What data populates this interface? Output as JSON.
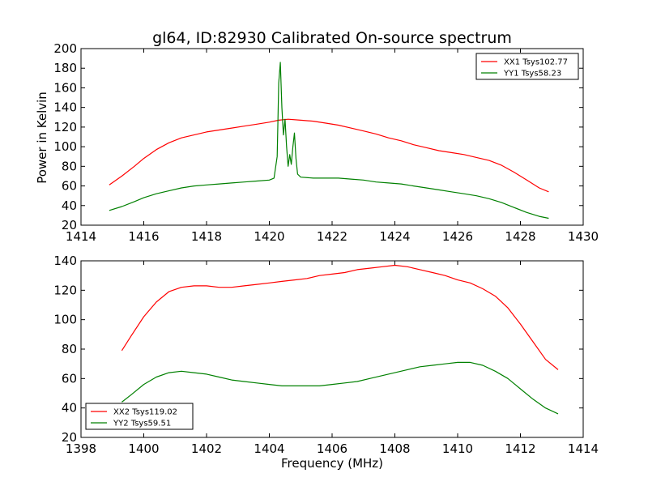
{
  "figure": {
    "title": "gl64, ID:82930 Calibrated On-source spectrum",
    "ylabel": "Power in Kelvin",
    "xlabel": "Frequency (MHz)",
    "colors": {
      "red": "#ff0000",
      "green": "#008000",
      "axis": "#000000"
    }
  },
  "chart_data": [
    {
      "type": "line",
      "title": "gl64, ID:82930 Calibrated On-source spectrum",
      "ylabel": "Power in Kelvin",
      "xlabel": "",
      "xlim": [
        1414,
        1430
      ],
      "ylim": [
        20,
        200
      ],
      "xticks": [
        1414,
        1416,
        1418,
        1420,
        1422,
        1424,
        1426,
        1428,
        1430
      ],
      "yticks": [
        20,
        40,
        60,
        80,
        100,
        120,
        140,
        160,
        180,
        200
      ],
      "grid": false,
      "legend_position": "top-right",
      "series": [
        {
          "name": "XX1 Tsys102.77",
          "color": "#ff0000",
          "x": [
            1414.9,
            1415.3,
            1415.7,
            1416.0,
            1416.4,
            1416.8,
            1417.2,
            1417.6,
            1418.0,
            1418.4,
            1418.8,
            1419.2,
            1419.6,
            1420.0,
            1420.3,
            1420.6,
            1421.0,
            1421.4,
            1421.8,
            1422.2,
            1422.6,
            1423.0,
            1423.4,
            1423.8,
            1424.2,
            1424.6,
            1425.0,
            1425.4,
            1425.8,
            1426.2,
            1426.6,
            1427.0,
            1427.4,
            1427.8,
            1428.2,
            1428.6,
            1428.9
          ],
          "y": [
            61,
            70,
            80,
            88,
            97,
            104,
            109,
            112,
            115,
            117,
            119,
            121,
            123,
            125,
            127,
            128,
            127,
            126,
            124,
            122,
            119,
            116,
            113,
            109,
            106,
            102,
            99,
            96,
            94,
            92,
            89,
            86,
            81,
            74,
            66,
            58,
            54
          ]
        },
        {
          "name": "YY1 Tsys58.23",
          "color": "#008000",
          "x": [
            1414.9,
            1415.3,
            1415.7,
            1416.0,
            1416.4,
            1416.8,
            1417.2,
            1417.6,
            1418.0,
            1418.4,
            1418.8,
            1419.2,
            1419.6,
            1420.0,
            1420.15,
            1420.25,
            1420.3,
            1420.35,
            1420.4,
            1420.45,
            1420.5,
            1420.55,
            1420.6,
            1420.65,
            1420.7,
            1420.75,
            1420.8,
            1420.85,
            1420.9,
            1421.0,
            1421.4,
            1421.8,
            1422.2,
            1422.6,
            1423.0,
            1423.4,
            1423.8,
            1424.2,
            1424.6,
            1425.0,
            1425.4,
            1425.8,
            1426.2,
            1426.6,
            1427.0,
            1427.4,
            1427.8,
            1428.2,
            1428.6,
            1428.9
          ],
          "y": [
            35,
            39,
            44,
            48,
            52,
            55,
            58,
            60,
            61,
            62,
            63,
            64,
            65,
            66,
            68,
            90,
            165,
            186,
            140,
            112,
            128,
            100,
            80,
            92,
            82,
            100,
            114,
            88,
            72,
            69,
            68,
            68,
            68,
            67,
            66,
            64,
            63,
            62,
            60,
            58,
            56,
            54,
            52,
            50,
            47,
            43,
            38,
            33,
            29,
            27
          ]
        }
      ]
    },
    {
      "type": "line",
      "title": "",
      "ylabel": "",
      "xlabel": "Frequency (MHz)",
      "xlim": [
        1398,
        1414
      ],
      "ylim": [
        20,
        140
      ],
      "xticks": [
        1398,
        1400,
        1402,
        1404,
        1406,
        1408,
        1410,
        1412,
        1414
      ],
      "yticks": [
        20,
        40,
        60,
        80,
        100,
        120,
        140
      ],
      "grid": false,
      "legend_position": "bottom-left",
      "series": [
        {
          "name": "XX2 Tsys119.02",
          "color": "#ff0000",
          "x": [
            1399.3,
            1399.6,
            1400.0,
            1400.4,
            1400.8,
            1401.2,
            1401.6,
            1402.0,
            1402.4,
            1402.8,
            1403.2,
            1403.6,
            1404.0,
            1404.4,
            1404.8,
            1405.2,
            1405.6,
            1406.0,
            1406.4,
            1406.8,
            1407.2,
            1407.6,
            1408.0,
            1408.4,
            1408.8,
            1409.2,
            1409.6,
            1410.0,
            1410.4,
            1410.8,
            1411.2,
            1411.6,
            1412.0,
            1412.4,
            1412.8,
            1413.2
          ],
          "y": [
            79,
            89,
            102,
            112,
            119,
            122,
            123,
            123,
            122,
            122,
            123,
            124,
            125,
            126,
            127,
            128,
            130,
            131,
            132,
            134,
            135,
            136,
            137,
            136,
            134,
            132,
            130,
            127,
            125,
            121,
            116,
            108,
            97,
            85,
            73,
            66
          ]
        },
        {
          "name": "YY2 Tsys59.51",
          "color": "#008000",
          "x": [
            1399.3,
            1399.6,
            1400.0,
            1400.4,
            1400.8,
            1401.2,
            1401.6,
            1402.0,
            1402.4,
            1402.8,
            1403.2,
            1403.6,
            1404.0,
            1404.4,
            1404.8,
            1405.2,
            1405.6,
            1406.0,
            1406.4,
            1406.8,
            1407.2,
            1407.6,
            1408.0,
            1408.4,
            1408.8,
            1409.2,
            1409.6,
            1410.0,
            1410.4,
            1410.8,
            1411.2,
            1411.6,
            1412.0,
            1412.4,
            1412.8,
            1413.2
          ],
          "y": [
            44,
            49,
            56,
            61,
            64,
            65,
            64,
            63,
            61,
            59,
            58,
            57,
            56,
            55,
            55,
            55,
            55,
            56,
            57,
            58,
            60,
            62,
            64,
            66,
            68,
            69,
            70,
            71,
            71,
            69,
            65,
            60,
            53,
            46,
            40,
            36
          ]
        }
      ]
    }
  ]
}
